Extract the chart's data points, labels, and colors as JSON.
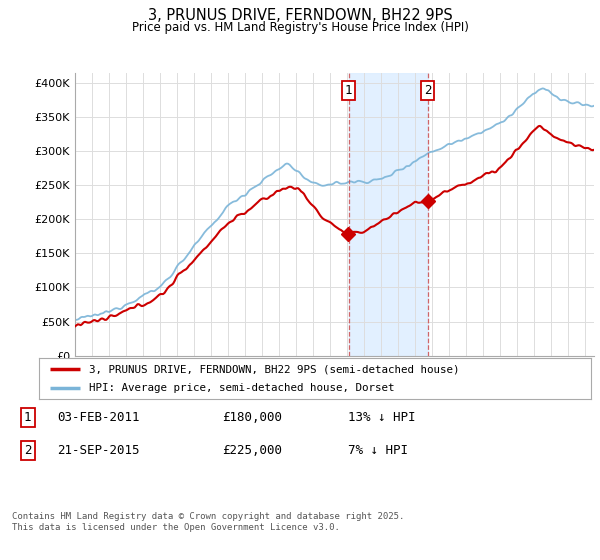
{
  "title": "3, PRUNUS DRIVE, FERNDOWN, BH22 9PS",
  "subtitle": "Price paid vs. HM Land Registry's House Price Index (HPI)",
  "ytick_values": [
    0,
    50000,
    100000,
    150000,
    200000,
    250000,
    300000,
    350000,
    400000
  ],
  "ylim": [
    0,
    415000
  ],
  "xlim_start": 1995.0,
  "xlim_end": 2025.5,
  "hpi_color": "#7ab4d8",
  "price_color": "#cc0000",
  "shade_color": "#ddeeff",
  "marker1_date": 2011.08,
  "marker2_date": 2015.72,
  "legend_line1": "3, PRUNUS DRIVE, FERNDOWN, BH22 9PS (semi-detached house)",
  "legend_line2": "HPI: Average price, semi-detached house, Dorset",
  "table_row1": [
    "1",
    "03-FEB-2011",
    "£180,000",
    "13% ↓ HPI"
  ],
  "table_row2": [
    "2",
    "21-SEP-2015",
    "£225,000",
    "7% ↓ HPI"
  ],
  "footnote": "Contains HM Land Registry data © Crown copyright and database right 2025.\nThis data is licensed under the Open Government Licence v3.0.",
  "background_color": "#ffffff",
  "plot_bg_color": "#ffffff",
  "grid_color": "#dddddd"
}
